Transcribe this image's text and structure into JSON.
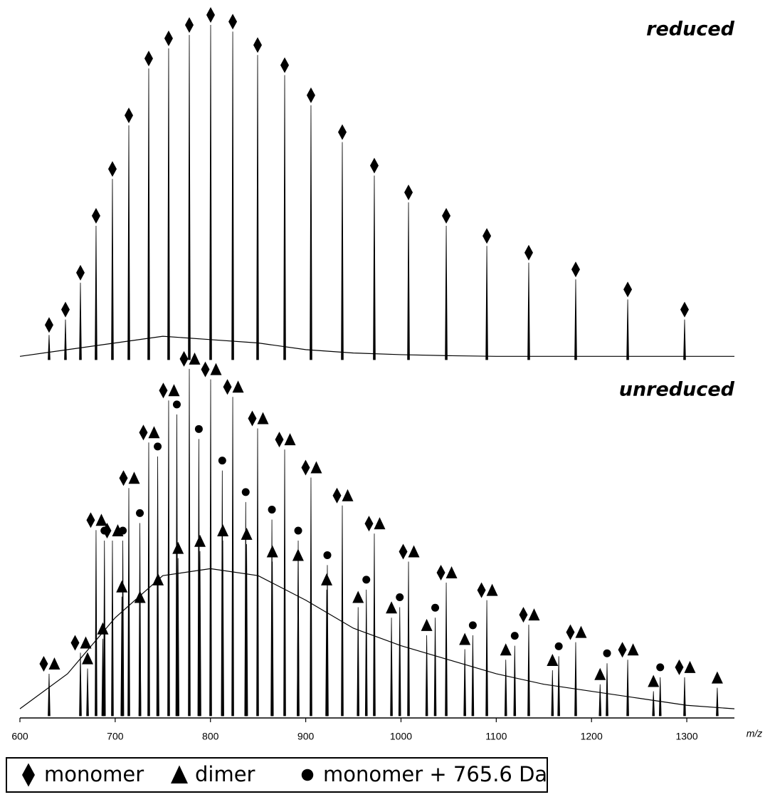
{
  "chart_data": [
    {
      "type": "spectrum",
      "label": "reduced",
      "xlim": [
        600,
        1350
      ],
      "ylim": [
        0,
        100
      ],
      "background": {
        "x": [
          600,
          650,
          700,
          750,
          800,
          850,
          900,
          950,
          1000,
          1050,
          1100,
          1150,
          1200,
          1250,
          1300,
          1350
        ],
        "values": [
          1,
          3,
          5,
          7,
          6,
          5,
          3,
          2,
          1.5,
          1.2,
          1,
          1,
          1,
          1,
          1,
          1
        ]
      },
      "series": [
        {
          "marker": [
            "diamond"
          ],
          "color": "#000000",
          "x": [
            630.6,
            647.8,
            663.5,
            679.9,
            697.1,
            714.3,
            735.2,
            756.1,
            777.8,
            800.2,
            823.4,
            849.5,
            877.9,
            905.5,
            938.4,
            972.0,
            1007.9,
            1047.5,
            1090.1,
            1134.1,
            1183.4,
            1238.0,
            1297.7
          ],
          "values": [
            7.4,
            12,
            23,
            40,
            54,
            70,
            87,
            93,
            97,
            100,
            98,
            91,
            85,
            76,
            65,
            55,
            47,
            40,
            34,
            29,
            24,
            18,
            12
          ]
        }
      ]
    },
    {
      "type": "spectrum",
      "label": "unreduced",
      "xlim": [
        600,
        1350
      ],
      "ylim": [
        0,
        100
      ],
      "xticks": [
        600,
        700,
        800,
        900,
        1000,
        1100,
        1200,
        1300
      ],
      "xlabel": "m/z",
      "background": {
        "x": [
          600,
          650,
          700,
          750,
          800,
          850,
          900,
          950,
          1000,
          1050,
          1100,
          1150,
          1200,
          1250,
          1300,
          1350
        ],
        "values": [
          2,
          12,
          28,
          40,
          42,
          40,
          33,
          25,
          20,
          16,
          12,
          9,
          7,
          5,
          3,
          2
        ]
      },
      "series": [
        {
          "name": "monomer",
          "marker": [
            "diamond",
            "triangle"
          ],
          "color": "#000000",
          "x": [
            630.6,
            663.5,
            679.9,
            697.1,
            714.3,
            735.2,
            756.1,
            777.8,
            800.2,
            823.4,
            849.5,
            877.9,
            905.5,
            938.4,
            972.0,
            1007.9,
            1047.5,
            1090.1,
            1134.1,
            1183.4,
            1238.0,
            1297.7
          ],
          "values": [
            12,
            18,
            53,
            50,
            65,
            78,
            90,
            99,
            96,
            91,
            82,
            76,
            68,
            60,
            52,
            44,
            38,
            33,
            26,
            21,
            16,
            11
          ]
        },
        {
          "name": "dimer",
          "marker": [
            "triangle"
          ],
          "color": "#000000",
          "x": [
            671,
            687,
            707,
            726,
            745,
            766,
            789,
            813,
            838,
            865,
            892,
            922,
            955,
            990,
            1027,
            1067,
            1110,
            1159,
            1209,
            1265,
            1332
          ],
          "values": [
            13.5,
            22,
            34,
            31,
            36,
            45,
            47,
            50,
            49,
            44,
            43,
            36,
            31,
            28,
            23,
            19,
            16,
            13,
            9,
            7,
            8
          ]
        },
        {
          "name": "monomer + 765.6 Da",
          "marker": [
            "circle"
          ],
          "color": "#000000",
          "x": [
            688.7,
            708.0,
            725.9,
            744.6,
            764.7,
            787.8,
            812.4,
            837.0,
            864.5,
            892.1,
            922.7,
            963.6,
            998.7,
            1035.9,
            1075.4,
            1119.4,
            1165.6,
            1216.3,
            1272.1
          ],
          "values": [
            50,
            50,
            55,
            74,
            86,
            79,
            70,
            61,
            56,
            50,
            43,
            36,
            31,
            28,
            23,
            20,
            17,
            15,
            11
          ]
        }
      ]
    }
  ]
}
